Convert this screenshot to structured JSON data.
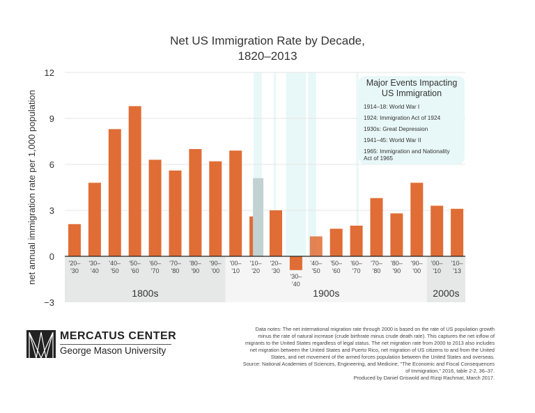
{
  "chart_data": {
    "type": "bar",
    "title": "Net US Immigration Rate by Decade,\n1820–2013",
    "title_lines": [
      "Net US Immigration Rate by Decade,",
      "1820–2013"
    ],
    "ylabel": "net annual immigration rate per 1,000 population",
    "ylim": [
      -3,
      12
    ],
    "yticks": [
      -3,
      0,
      3,
      6,
      9,
      12
    ],
    "ytick_labels": [
      "−3",
      "0",
      "3",
      "6",
      "9",
      "12"
    ],
    "grid": true,
    "bar_color": "#e06d35",
    "highlight_color": "#c2d1d1",
    "band_color": "#e8f7f7",
    "categories": [
      [
        "'20–",
        "'30"
      ],
      [
        "'30–",
        "'40"
      ],
      [
        "'40–",
        "'50"
      ],
      [
        "'50–",
        "'60"
      ],
      [
        "'60–",
        "'70"
      ],
      [
        "'70–",
        "'80"
      ],
      [
        "'80–",
        "'90"
      ],
      [
        "'90–",
        "'00"
      ],
      [
        "'00–",
        "'10"
      ],
      [
        "'10–",
        "'20"
      ],
      [
        "'20–",
        "'30"
      ],
      [
        "'30–",
        "'40"
      ],
      [
        "'40–",
        "'50"
      ],
      [
        "'50–",
        "'60"
      ],
      [
        "'60–",
        "'70"
      ],
      [
        "'70–",
        "'80"
      ],
      [
        "'80–",
        "'90"
      ],
      [
        "'90–",
        "'00"
      ],
      [
        "'00–",
        "'10"
      ],
      [
        "'10–",
        "'13"
      ]
    ],
    "decade_start_years": [
      1820,
      1830,
      1840,
      1850,
      1860,
      1870,
      1880,
      1890,
      1900,
      1910,
      1920,
      1930,
      1940,
      1950,
      1960,
      1970,
      1980,
      1990,
      2000,
      2010
    ],
    "values": [
      2.1,
      4.8,
      8.3,
      9.8,
      6.3,
      5.6,
      7.0,
      6.2,
      6.9,
      2.6,
      3.0,
      -0.9,
      1.3,
      1.8,
      2.0,
      3.8,
      2.8,
      4.8,
      3.3,
      3.1
    ],
    "highlight_overlay": {
      "category_index": 9,
      "value": 5.1
    },
    "centuries": [
      {
        "label": "1800s",
        "from": 1820,
        "to": 1900,
        "color": "#e6e7e7"
      },
      {
        "label": "1900s",
        "from": 1900,
        "to": 2000,
        "color": "#f5f5f5"
      },
      {
        "label": "2000s",
        "from": 2000,
        "to": 2013,
        "color": "#e6e7e7"
      }
    ],
    "event_bands": [
      {
        "from": 1914,
        "to": 1918
      },
      {
        "from": 1924,
        "to": 1925
      },
      {
        "from": 1930,
        "to": 1940
      },
      {
        "from": 1941,
        "to": 1945
      },
      {
        "from": 1965,
        "to": 1966
      }
    ],
    "legend": {
      "title_lines": [
        "Major Events Impacting",
        "US Immigration"
      ],
      "items": [
        "1914–18: World War I",
        "1924: Immigration Act of 1924",
        "1930s: Great Depression",
        "1941–45: World War II",
        "1965: Immigration and Nationality Act of 1965"
      ],
      "placement": "top-right"
    }
  },
  "logo": {
    "name": "MERCATUS CENTER",
    "subtitle": "George Mason University"
  },
  "notes": [
    "Data notes: The net international migration rate through 2000 is based on the rate of US population growth",
    "minus the rate of natural increase (crude birthrate minus crude death rate). This captures the net inflow of",
    "migrants to the United States regardless of legal status. The net migration rate from 2000 to 2013 also includes",
    "net migration between the United States and Puerto Rico, net migration of US citizens to and from the United",
    "States, and net movement of the armed forces population between the United States and overseas.",
    "Source: National Academies of Sciences, Engineering, and Medicine, \"The Economic and Fiscal Consequences",
    "of Immigration,\" 2016, table 2-2, 36–37.",
    "Produced by Daniel Griswold and Rizqi Rachmat, March 2017."
  ]
}
